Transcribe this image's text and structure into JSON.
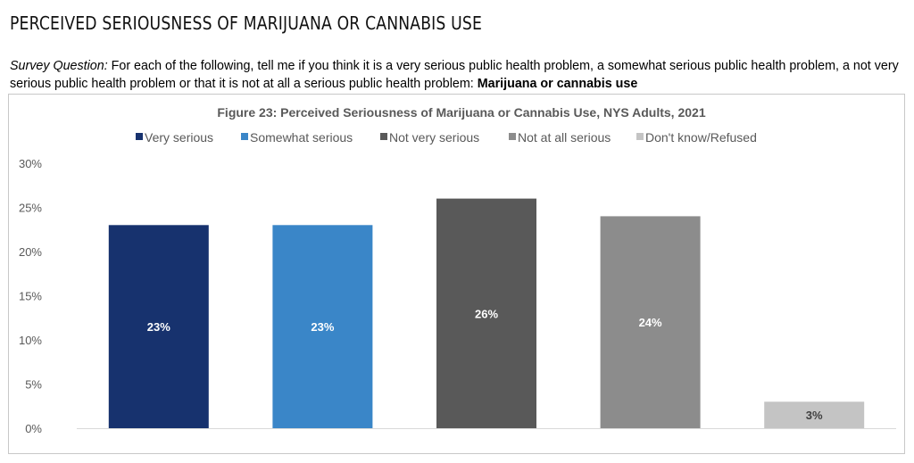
{
  "heading": "PERCEIVED SERIOUSNESS OF MARIJUANA OR CANNABIS USE",
  "survey_question": {
    "label": "Survey Question:",
    "text": " For each of the following, tell me if you think it is a very serious public health problem, a somewhat serious public health problem, a not very serious public health problem or that it is not at all a serious public health problem: ",
    "topic": "Marijuana or cannabis use"
  },
  "chart_data": {
    "type": "bar",
    "title": "Figure 23: Perceived Seriousness of Marijuana or Cannabis Use, NYS Adults, 2021",
    "categories": [
      "Very serious",
      "Somewhat serious",
      "Not very serious",
      "Not at all serious",
      "Don't know/Refused"
    ],
    "values": [
      23,
      23,
      26,
      24,
      3
    ],
    "data_labels": [
      "23%",
      "23%",
      "26%",
      "24%",
      "3%"
    ],
    "colors": [
      "#17326e",
      "#3a86c8",
      "#595959",
      "#8c8c8c",
      "#c4c4c4"
    ],
    "label_colors": [
      "#ffffff",
      "#ffffff",
      "#ffffff",
      "#ffffff",
      "#404040"
    ],
    "ylim": [
      0,
      30
    ],
    "yticks": [
      0,
      5,
      10,
      15,
      20,
      25,
      30
    ],
    "ytick_labels": [
      "0%",
      "5%",
      "10%",
      "15%",
      "20%",
      "25%",
      "30%"
    ],
    "grid": false,
    "legend_position": "top"
  }
}
